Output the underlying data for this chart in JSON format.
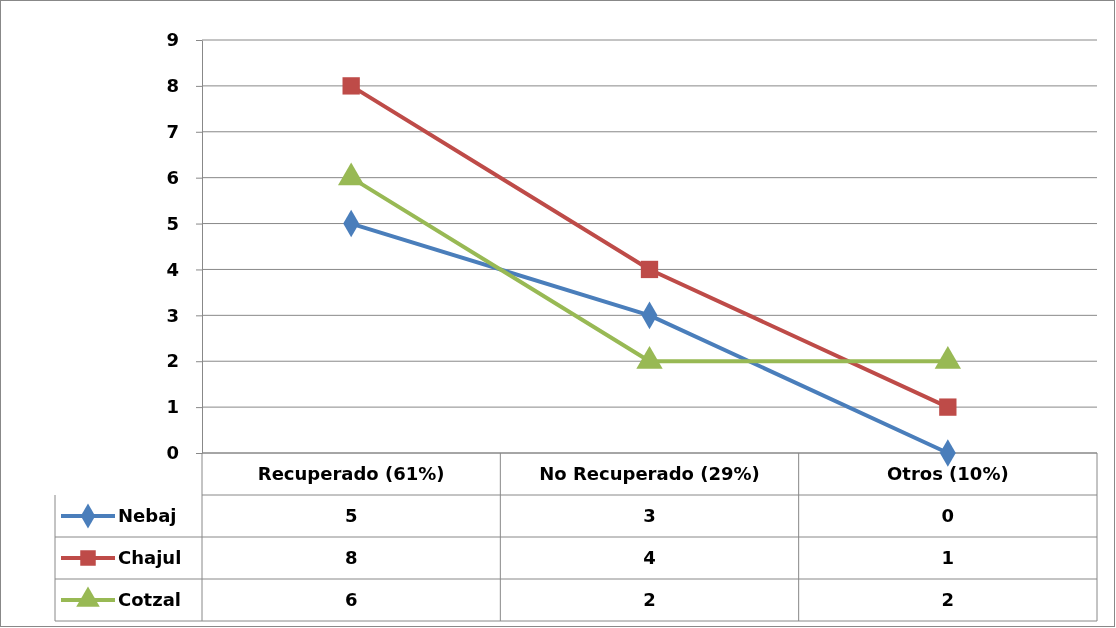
{
  "chart_data": {
    "type": "line",
    "categories": [
      "Recuperado (61%)",
      "No Recuperado (29%)",
      "Otros (10%)"
    ],
    "series": [
      {
        "name": "Nebaj",
        "color": "#4a7ebb",
        "marker": "diamond",
        "values": [
          5,
          3,
          0
        ]
      },
      {
        "name": "Chajul",
        "color": "#be4b48",
        "marker": "square",
        "values": [
          8,
          4,
          1
        ]
      },
      {
        "name": "Cotzal",
        "color": "#98b954",
        "marker": "triangle",
        "values": [
          6,
          2,
          2
        ]
      }
    ],
    "ylim": [
      0,
      9
    ],
    "yticks": [
      0,
      1,
      2,
      3,
      4,
      5,
      6,
      7,
      8,
      9
    ],
    "grid": "y",
    "legend": "bottom",
    "data_labels": true
  }
}
